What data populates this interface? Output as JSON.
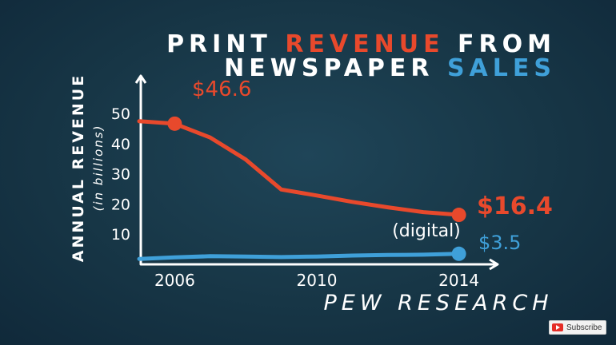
{
  "title": {
    "line1": [
      {
        "text": "PRINT ",
        "color": "#ffffff"
      },
      {
        "text": "REVENUE",
        "color": "#e8492c"
      },
      {
        "text": " FROM",
        "color": "#ffffff"
      }
    ],
    "line2": [
      {
        "text": "NEWSPAPER ",
        "color": "#ffffff"
      },
      {
        "text": "SALES",
        "color": "#3fa0d9"
      }
    ]
  },
  "chart_data": {
    "type": "line",
    "ylabel": "ANNUAL REVENUE",
    "ylabel_sub": "(in billions)",
    "source": "PEW RESEARCH",
    "x_ticks": [
      "2006",
      "2010",
      "2014"
    ],
    "y_ticks": [
      "10",
      "20",
      "30",
      "40",
      "50"
    ],
    "xlim": [
      2005,
      2015
    ],
    "ylim": [
      0,
      50
    ],
    "grid": false,
    "series": [
      {
        "key": "print",
        "color": "#e8492c",
        "x": [
          2005,
          2006,
          2007,
          2008,
          2009,
          2010,
          2011,
          2012,
          2013,
          2014
        ],
        "y": [
          47.4,
          46.6,
          42.0,
          34.7,
          24.8,
          22.8,
          20.7,
          18.9,
          17.3,
          16.4
        ],
        "start_label": "$46.6",
        "end_label": "$16.4",
        "start_marker_x": 2006,
        "end_marker_x": 2014
      },
      {
        "key": "digital",
        "color": "#3fa0d9",
        "annotation": "(digital)",
        "x": [
          2005,
          2006,
          2007,
          2008,
          2009,
          2010,
          2011,
          2012,
          2013,
          2014
        ],
        "y": [
          1.8,
          2.3,
          2.7,
          2.6,
          2.4,
          2.6,
          2.9,
          3.1,
          3.2,
          3.5
        ],
        "end_label": "$3.5",
        "end_marker_x": 2014
      }
    ]
  },
  "ui": {
    "subscribe_label": "Subscribe",
    "youtube_icon": "youtube-logo-icon"
  }
}
